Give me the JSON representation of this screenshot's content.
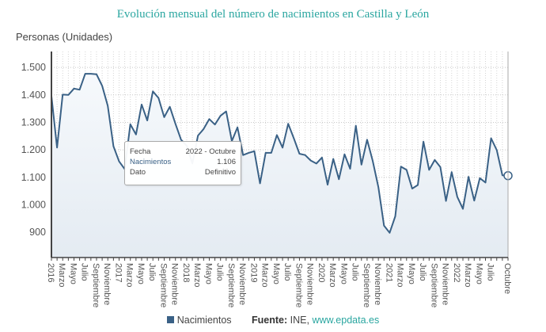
{
  "chart_data": {
    "type": "area",
    "title": "Evolución mensual del número de nacimientos en Castilla y León",
    "ylabel": "Personas (Unidades)",
    "xlabel": "",
    "ylim": [
      808,
      1558
    ],
    "yticks": [
      900,
      1000,
      1100,
      1200,
      1300,
      1400,
      1500
    ],
    "ytick_labels": [
      "900",
      "1.000",
      "1.100",
      "1.200",
      "1.300",
      "1.400",
      "1.500"
    ],
    "grid": true,
    "legend": "bottom",
    "color": "#3a6186",
    "x_start": "2016-01",
    "x_end": "2022-10",
    "xtick_labels": [
      {
        "i": 0,
        "label": "2016"
      },
      {
        "i": 2,
        "label": "Marzo"
      },
      {
        "i": 4,
        "label": "Mayo"
      },
      {
        "i": 6,
        "label": "Julio"
      },
      {
        "i": 8,
        "label": "Septiembre"
      },
      {
        "i": 10,
        "label": "Noviembre"
      },
      {
        "i": 12,
        "label": "2017"
      },
      {
        "i": 14,
        "label": "Marzo"
      },
      {
        "i": 16,
        "label": "Mayo"
      },
      {
        "i": 18,
        "label": "Julio"
      },
      {
        "i": 20,
        "label": "Septiembre"
      },
      {
        "i": 22,
        "label": "Noviembre"
      },
      {
        "i": 24,
        "label": "2018"
      },
      {
        "i": 26,
        "label": "Marzo"
      },
      {
        "i": 28,
        "label": "Mayo"
      },
      {
        "i": 30,
        "label": "Julio"
      },
      {
        "i": 32,
        "label": "Septiembre"
      },
      {
        "i": 34,
        "label": "Noviembre"
      },
      {
        "i": 36,
        "label": "2019"
      },
      {
        "i": 38,
        "label": "Marzo"
      },
      {
        "i": 40,
        "label": "Mayo"
      },
      {
        "i": 42,
        "label": "Julio"
      },
      {
        "i": 44,
        "label": "Septiembre"
      },
      {
        "i": 46,
        "label": "Noviembre"
      },
      {
        "i": 48,
        "label": "2020"
      },
      {
        "i": 50,
        "label": "Marzo"
      },
      {
        "i": 52,
        "label": "Mayo"
      },
      {
        "i": 54,
        "label": "Julio"
      },
      {
        "i": 56,
        "label": "Septiembre"
      },
      {
        "i": 58,
        "label": "Noviembre"
      },
      {
        "i": 60,
        "label": "2021"
      },
      {
        "i": 62,
        "label": "Marzo"
      },
      {
        "i": 64,
        "label": "Mayo"
      },
      {
        "i": 66,
        "label": "Julio"
      },
      {
        "i": 68,
        "label": "Septiembre"
      },
      {
        "i": 70,
        "label": "Noviembre"
      },
      {
        "i": 72,
        "label": "2022"
      },
      {
        "i": 74,
        "label": "Marzo"
      },
      {
        "i": 76,
        "label": "Mayo"
      },
      {
        "i": 78,
        "label": "Julio"
      },
      {
        "i": 81,
        "label": "Octubre"
      }
    ],
    "series": [
      {
        "name": "Nacimientos",
        "values": [
          1396,
          1208,
          1401,
          1400,
          1423,
          1419,
          1477,
          1477,
          1475,
          1433,
          1360,
          1213,
          1158,
          1130,
          1293,
          1256,
          1365,
          1307,
          1413,
          1389,
          1319,
          1357,
          1295,
          1237,
          1215,
          1150,
          1252,
          1276,
          1312,
          1292,
          1324,
          1340,
          1232,
          1282,
          1181,
          1189,
          1195,
          1078,
          1189,
          1189,
          1254,
          1208,
          1295,
          1242,
          1186,
          1181,
          1161,
          1150,
          1172,
          1073,
          1167,
          1093,
          1184,
          1131,
          1288,
          1146,
          1237,
          1160,
          1064,
          924,
          898,
          958,
          1139,
          1127,
          1059,
          1072,
          1230,
          1127,
          1163,
          1137,
          1014,
          1119,
          1029,
          985,
          1102,
          1015,
          1097,
          1081,
          1242,
          1199,
          1107,
          1106
        ]
      }
    ]
  },
  "tooltip": {
    "fecha_label": "Fecha",
    "fecha_value": "2022 - Octubre",
    "series_label": "Nacimientos",
    "series_value": "1.106",
    "dato_label": "Dato",
    "dato_value": "Definitivo"
  },
  "footer": {
    "legend_label": "Nacimientos",
    "source_label": "Fuente:",
    "source_text": " INE, ",
    "source_link": "www.epdata.es"
  }
}
